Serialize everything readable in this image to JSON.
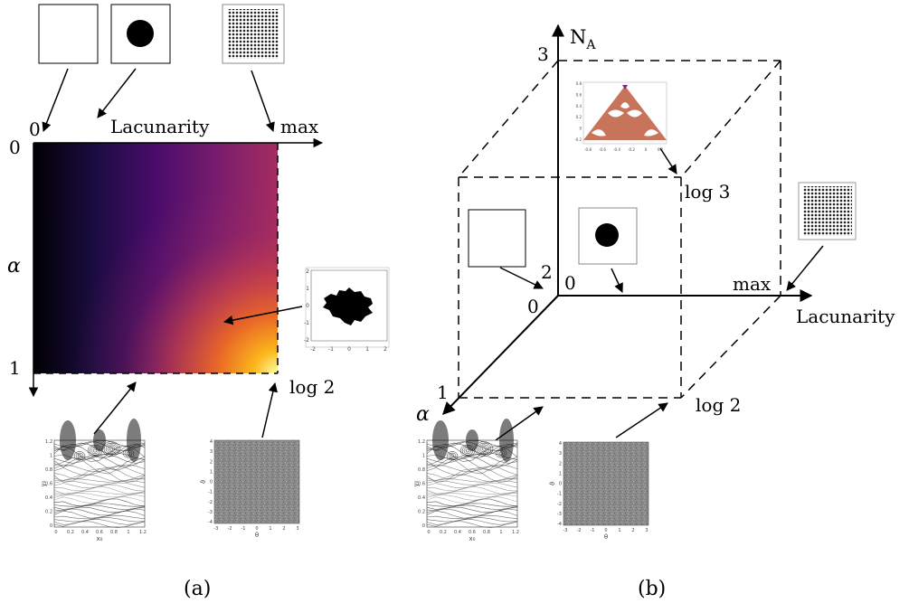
{
  "panel_a": {
    "caption": "(a)",
    "axis_x_label": "Lacunarity",
    "axis_x_zero": "0",
    "axis_x_max": "max",
    "axis_y_label": "α",
    "axis_y_top": "0",
    "axis_y_bottom": "1",
    "corner_label": "log 2",
    "fractal_inset_ticks_x": [
      "-2",
      "-1",
      "0",
      "1",
      "2"
    ],
    "fractal_inset_ticks_y": [
      "2",
      "1",
      "0",
      "-1",
      "-2"
    ],
    "colormap": "inferno"
  },
  "panel_b": {
    "caption": "(b)",
    "axis_z_label": "N",
    "axis_z_label_sub": "A",
    "axis_x_label": "Lacunarity",
    "axis_x_max": "max",
    "axis_alpha_label": "α",
    "origin_label": "0",
    "z_tick_3": "3",
    "z_tick_2": "2",
    "alpha_tick_1": "1",
    "label_log3": "log 3",
    "label_log2": "log 2",
    "triangle_inset_ticks_x": [
      "-0.8",
      "-0.6",
      "-0.4",
      "-0.2",
      "0",
      "0.2"
    ],
    "triangle_inset_ticks_y": [
      "0.8",
      "0.6",
      "0.4",
      "0.2",
      "0",
      "-0.2"
    ]
  },
  "scatter_inset": {
    "xlabel": "x₀",
    "ylabel": "y₀",
    "ticks_x": [
      "0",
      "0.2",
      "0.4",
      "0.6",
      "0.8",
      "1",
      "1.2"
    ],
    "ticks_y": [
      "1.2",
      "1",
      "0.8",
      "0.6",
      "0.4",
      "0.2",
      "0"
    ]
  },
  "noise_inset": {
    "xlabel": "θ",
    "ylabel": "ϑ",
    "ticks_x": [
      "-3",
      "-2",
      "-1",
      "0",
      "1",
      "2",
      "3"
    ],
    "ticks_y": [
      "4",
      "3",
      "2",
      "1",
      "0",
      "-1",
      "-2",
      "-3",
      "-4"
    ]
  }
}
